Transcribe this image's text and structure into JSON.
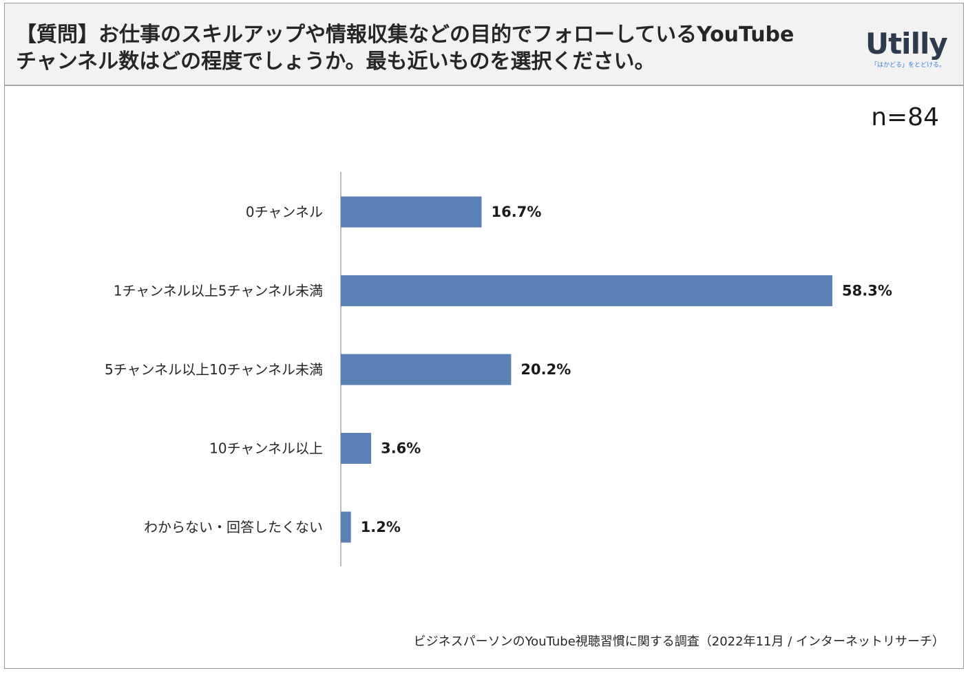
{
  "header": {
    "title_line1": "【質問】お仕事のスキルアップや情報収集などの目的でフォローしているYouTube",
    "title_line2": "チャンネル数はどの程度でしょうか。最も近いものを選択ください。"
  },
  "logo": {
    "word": "Utilly",
    "tagline": "「はかどる」をとどける。"
  },
  "sample_size": "n=84",
  "source": "ビジネスパーソンのYouTube視聴習慣に関する調査（2022年11月 / インターネットリサーチ）",
  "colors": {
    "bar": "#5a80b6",
    "axis": "#a6a6a6"
  },
  "chart_data": {
    "type": "bar",
    "orientation": "horizontal",
    "categories": [
      "0チャンネル",
      "1チャンネル以上5チャンネル未満",
      "5チャンネル以上10チャンネル未満",
      "10チャンネル以上",
      "わからない・回答したくない"
    ],
    "values": [
      16.7,
      58.3,
      20.2,
      3.6,
      1.2
    ],
    "value_labels": [
      "16.7%",
      "58.3%",
      "20.2%",
      "3.6%",
      "1.2%"
    ],
    "unit": "%",
    "xlim": [
      0,
      58.3
    ],
    "grid": false
  }
}
